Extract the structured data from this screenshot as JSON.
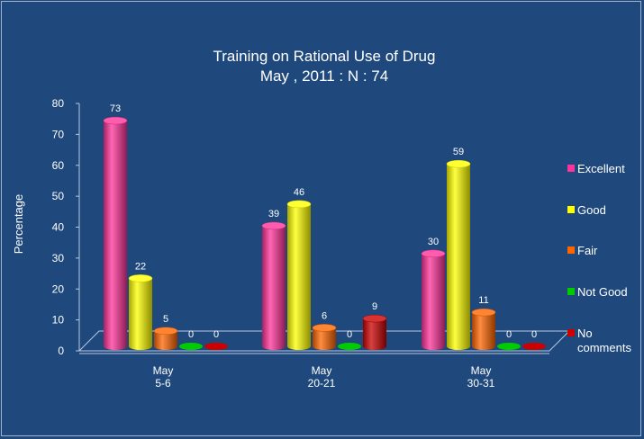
{
  "chart_data": {
    "type": "bar",
    "title": "Training on Rational Use of Drug",
    "subtitle": "May , 2011 : N : 74",
    "xlabel": "",
    "ylabel": "Percentage",
    "ylim": [
      0,
      80
    ],
    "yticks": [
      0,
      10,
      20,
      30,
      40,
      50,
      60,
      70,
      80
    ],
    "categories": [
      [
        "May",
        "5-6"
      ],
      [
        "May",
        "20-21"
      ],
      [
        "May",
        "30-31"
      ]
    ],
    "series": [
      {
        "name": "Excellent",
        "color": "#ff3399",
        "values": [
          73,
          39,
          30
        ]
      },
      {
        "name": "Good",
        "color": "#ffff00",
        "values": [
          22,
          46,
          59
        ]
      },
      {
        "name": "Fair",
        "color": "#ff6600",
        "values": [
          5,
          6,
          11
        ]
      },
      {
        "name": "Not Good",
        "color": "#00cc00",
        "values": [
          0,
          0,
          0
        ]
      },
      {
        "name": "No comments",
        "color": "#cc0000",
        "values": [
          0,
          9,
          0
        ]
      }
    ],
    "data_labels": [
      [
        "73",
        "22",
        "5",
        "0",
        "0"
      ],
      [
        "39",
        "46",
        "6",
        "0",
        "9"
      ],
      [
        "30",
        "59",
        "11",
        "0",
        "0"
      ]
    ],
    "legend": {
      "position": "right",
      "items": [
        [
          "Excellent"
        ],
        [
          "Good"
        ],
        [
          "Fair"
        ],
        [
          "Not Good"
        ],
        [
          "No",
          "comments"
        ]
      ]
    },
    "grid": false
  }
}
